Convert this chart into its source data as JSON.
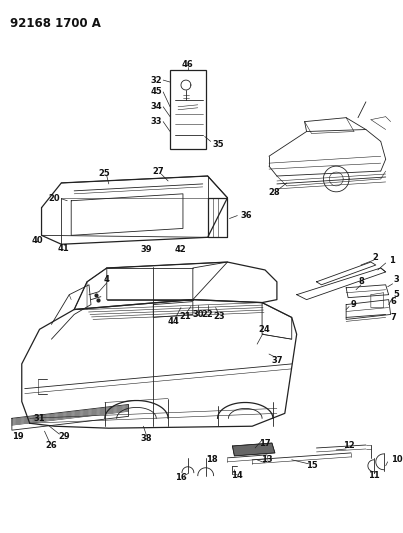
{
  "title": "92168 1700 A",
  "bg_color": "#ffffff",
  "line_color": "#222222",
  "title_fontsize": 8.5,
  "label_fontsize": 6.0,
  "fig_width": 4.03,
  "fig_height": 5.33,
  "fig_dpi": 100
}
